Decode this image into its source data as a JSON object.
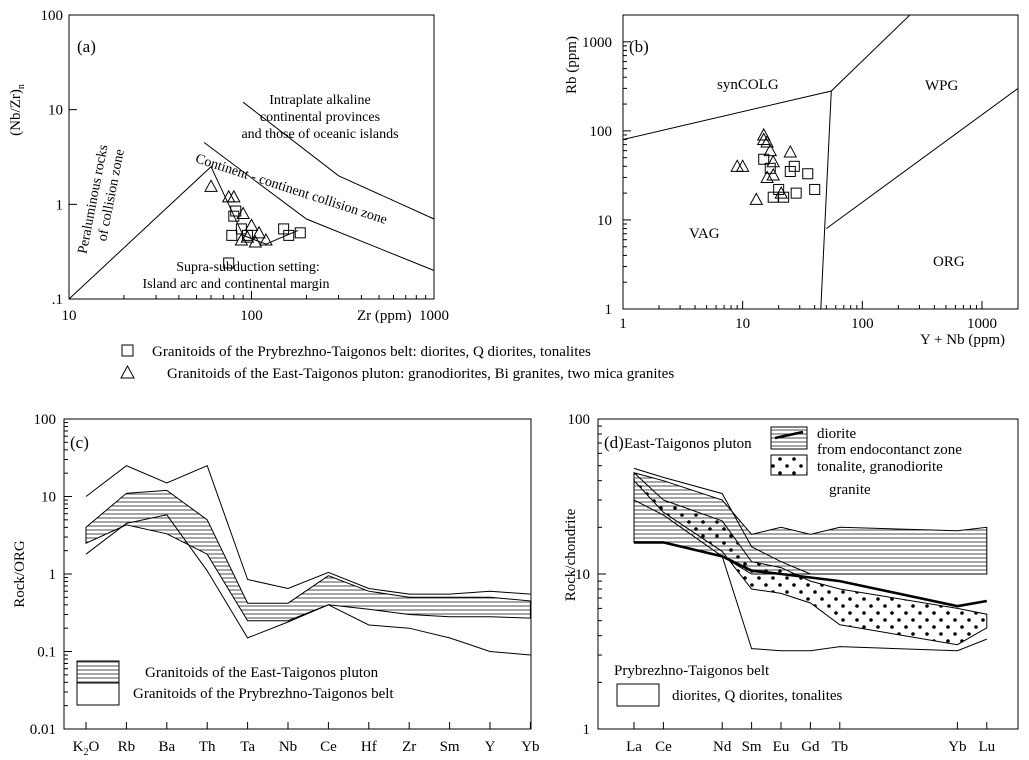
{
  "legend_ab": {
    "square": "Granitoids of the Prybrezhno-Taigonos belt: diorites, Q diorites, tonalites",
    "triangle": "Granitoids of the East-Taigonos pluton: granodiorites, Bi granites, two mica granites"
  },
  "chart_data": [
    {
      "panel": "(a)",
      "type": "scatter",
      "scale": "log-log",
      "xlabel": "Zr  (ppm)",
      "ylabel": "(Nb/Zr)",
      "ylabel_sub": "n",
      "xlim": [
        10,
        1000
      ],
      "ylim": [
        0.1,
        100
      ],
      "x_ticks": [
        "10",
        "100",
        "1000"
      ],
      "y_ticks": [
        "100",
        "10",
        "1",
        ".1"
      ],
      "regions": [
        "Peraluminous rocks",
        "of collision zone",
        "Intraplate alkaline",
        "continental provinces",
        "and those of oceanic islands",
        "Continent - continent collision zone",
        "Supra-subduction setting:",
        "Island arc and continental margin"
      ],
      "boundaries": [
        [
          [
            10,
            0.1
          ],
          [
            60,
            2.5
          ],
          [
            90,
            0.47
          ],
          [
            120,
            0.38
          ],
          [
            180,
            0.53
          ]
        ],
        [
          [
            55,
            4.5
          ],
          [
            200,
            0.7
          ],
          [
            1000,
            0.2
          ]
        ],
        [
          [
            90,
            12
          ],
          [
            300,
            2.0
          ],
          [
            1000,
            0.7
          ]
        ]
      ],
      "series": [
        {
          "marker": "square",
          "points": [
            [
              80,
              0.75
            ],
            [
              82,
              0.85
            ],
            [
              88,
              0.55
            ],
            [
              95,
              0.47
            ],
            [
              78,
              0.47
            ],
            [
              150,
              0.55
            ],
            [
              160,
              0.47
            ],
            [
              185,
              0.5
            ],
            [
              75,
              0.24
            ]
          ]
        },
        {
          "marker": "triangle",
          "points": [
            [
              60,
              1.55
            ],
            [
              75,
              1.2
            ],
            [
              80,
              1.2
            ],
            [
              90,
              0.8
            ],
            [
              100,
              0.6
            ],
            [
              95,
              0.45
            ],
            [
              110,
              0.5
            ],
            [
              120,
              0.42
            ],
            [
              88,
              0.42
            ],
            [
              105,
              0.4
            ]
          ]
        }
      ]
    },
    {
      "panel": "(b)",
      "type": "scatter",
      "scale": "log-log",
      "xlabel": "Y + Nb  (ppm)",
      "ylabel": "Rb  (ppm)",
      "xlim": [
        1,
        2000
      ],
      "ylim": [
        1,
        2000
      ],
      "x_ticks": [
        "1",
        "10",
        "100",
        "1000"
      ],
      "y_ticks": [
        "1",
        "10",
        "100",
        "1000"
      ],
      "regions": [
        "synCOLG",
        "WPG",
        "VAG",
        "ORG"
      ],
      "boundaries": [
        [
          [
            1,
            80
          ],
          [
            55,
            280
          ],
          [
            250,
            2000
          ]
        ],
        [
          [
            55,
            280
          ],
          [
            45,
            1
          ]
        ],
        [
          [
            50,
            8
          ],
          [
            2000,
            300
          ]
        ]
      ],
      "series": [
        {
          "marker": "square",
          "points": [
            [
              15,
              48
            ],
            [
              17,
              38
            ],
            [
              20,
              22
            ],
            [
              22,
              18
            ],
            [
              18,
              18
            ],
            [
              25,
              35
            ],
            [
              27,
              40
            ],
            [
              28,
              20
            ],
            [
              35,
              33
            ],
            [
              40,
              22
            ]
          ]
        },
        {
          "marker": "triangle",
          "points": [
            [
              9,
              40
            ],
            [
              10,
              40
            ],
            [
              13,
              17
            ],
            [
              15,
              90
            ],
            [
              15,
              80
            ],
            [
              16,
              75
            ],
            [
              17,
              60
            ],
            [
              18,
              45
            ],
            [
              16,
              30
            ],
            [
              18,
              32
            ],
            [
              21,
              20
            ],
            [
              25,
              58
            ]
          ]
        }
      ]
    },
    {
      "panel": "(c)",
      "type": "area",
      "scale": "log-y",
      "ylabel": "Rock/ORG",
      "categories": [
        "K2O",
        "Rb",
        "Ba",
        "Th",
        "Ta",
        "Nb",
        "Ce",
        "Hf",
        "Zr",
        "Sm",
        "Y",
        "Yb"
      ],
      "category_labels": [
        {
          "main": "K",
          "sub": "2",
          "tail": "O"
        },
        {
          "main": "Rb"
        },
        {
          "main": "Ba"
        },
        {
          "main": "Th"
        },
        {
          "main": "Ta"
        },
        {
          "main": "Nb"
        },
        {
          "main": "Ce"
        },
        {
          "main": "Hf"
        },
        {
          "main": "Zr"
        },
        {
          "main": "Sm"
        },
        {
          "main": "Y"
        },
        {
          "main": "Yb"
        }
      ],
      "ylim": [
        0.01,
        100
      ],
      "y_ticks": [
        "100",
        "10",
        "1",
        "0.1",
        "0.01"
      ],
      "legend": [
        "Granitoids of the East-Taigonos pluton",
        "Granitoids of the Prybrezhno-Taigonos belt"
      ],
      "series": [
        {
          "name": "Granitoids of the East-Taigonos pluton",
          "role": "upper",
          "values": [
            4,
            11,
            12,
            5,
            0.42,
            0.42,
            0.95,
            0.6,
            0.5,
            0.5,
            0.5,
            0.45
          ]
        },
        {
          "name": "Granitoids of the East-Taigonos pluton",
          "role": "lower",
          "values": [
            2.5,
            4.3,
            3.3,
            1.8,
            0.25,
            0.25,
            0.4,
            0.35,
            0.3,
            0.28,
            0.28,
            0.27
          ]
        },
        {
          "name": "Granitoids of the Prybrezhno-Taigonos belt",
          "role": "upper",
          "values": [
            10,
            25,
            15,
            25,
            0.85,
            0.65,
            1.05,
            0.65,
            0.55,
            0.55,
            0.6,
            0.55
          ]
        },
        {
          "name": "Granitoids of the Prybrezhno-Taigonos belt",
          "role": "lower",
          "values": [
            1.8,
            4.5,
            5.8,
            1.1,
            0.15,
            0.24,
            0.4,
            0.22,
            0.2,
            0.15,
            0.1,
            0.09
          ]
        }
      ]
    },
    {
      "panel": "(d)",
      "type": "area",
      "scale": "log-y",
      "ylabel": "Rock/chondrite",
      "categories": [
        "La",
        "Ce",
        "Nd",
        "Sm",
        "Eu",
        "Gd",
        "Tb",
        "Yb",
        "Lu"
      ],
      "x_index": [
        0,
        1,
        3,
        4,
        5,
        6,
        7,
        11,
        12
      ],
      "ylim": [
        1,
        100
      ],
      "y_ticks": [
        "100",
        "10",
        "1"
      ],
      "legend_title_pluton": "East-Taigonos pluton",
      "legend_title_belt": "Prybrezhno-Taigonos belt",
      "legend": [
        "diorite",
        "from endocontanct zone",
        "tonalite, granodiorite",
        "granite",
        "diorites, Q diorites, tonalites"
      ],
      "series": [
        {
          "name": "granite",
          "role": "upper",
          "values": [
            45,
            40,
            30,
            18,
            20,
            18,
            20,
            19,
            20
          ]
        },
        {
          "name": "granite",
          "role": "lower",
          "values": [
            16,
            16,
            13,
            10,
            10,
            10,
            10,
            10,
            10
          ]
        },
        {
          "name": "diorite",
          "role": "bold",
          "values": [
            16,
            16,
            13,
            10.5,
            10,
            9.5,
            9,
            6.2,
            6.7
          ]
        },
        {
          "name": "tonalite, granodiorite",
          "role": "upper",
          "values": [
            45,
            30,
            22,
            12,
            11,
            9,
            8,
            6,
            5.5
          ]
        },
        {
          "name": "tonalite, granodiorite",
          "role": "lower",
          "values": [
            40,
            25,
            14,
            8,
            7.5,
            6.5,
            4.7,
            3.5,
            4.5
          ]
        },
        {
          "name": "diorites, Q diorites, tonalites",
          "role": "upper",
          "values": [
            48,
            42,
            33,
            15,
            12,
            10,
            10,
            10,
            10
          ]
        },
        {
          "name": "diorites, Q diorites, tonalites",
          "role": "lower",
          "values": [
            30,
            24,
            13,
            3.3,
            3.2,
            3.2,
            3.4,
            3.2,
            3.8
          ]
        }
      ]
    }
  ]
}
